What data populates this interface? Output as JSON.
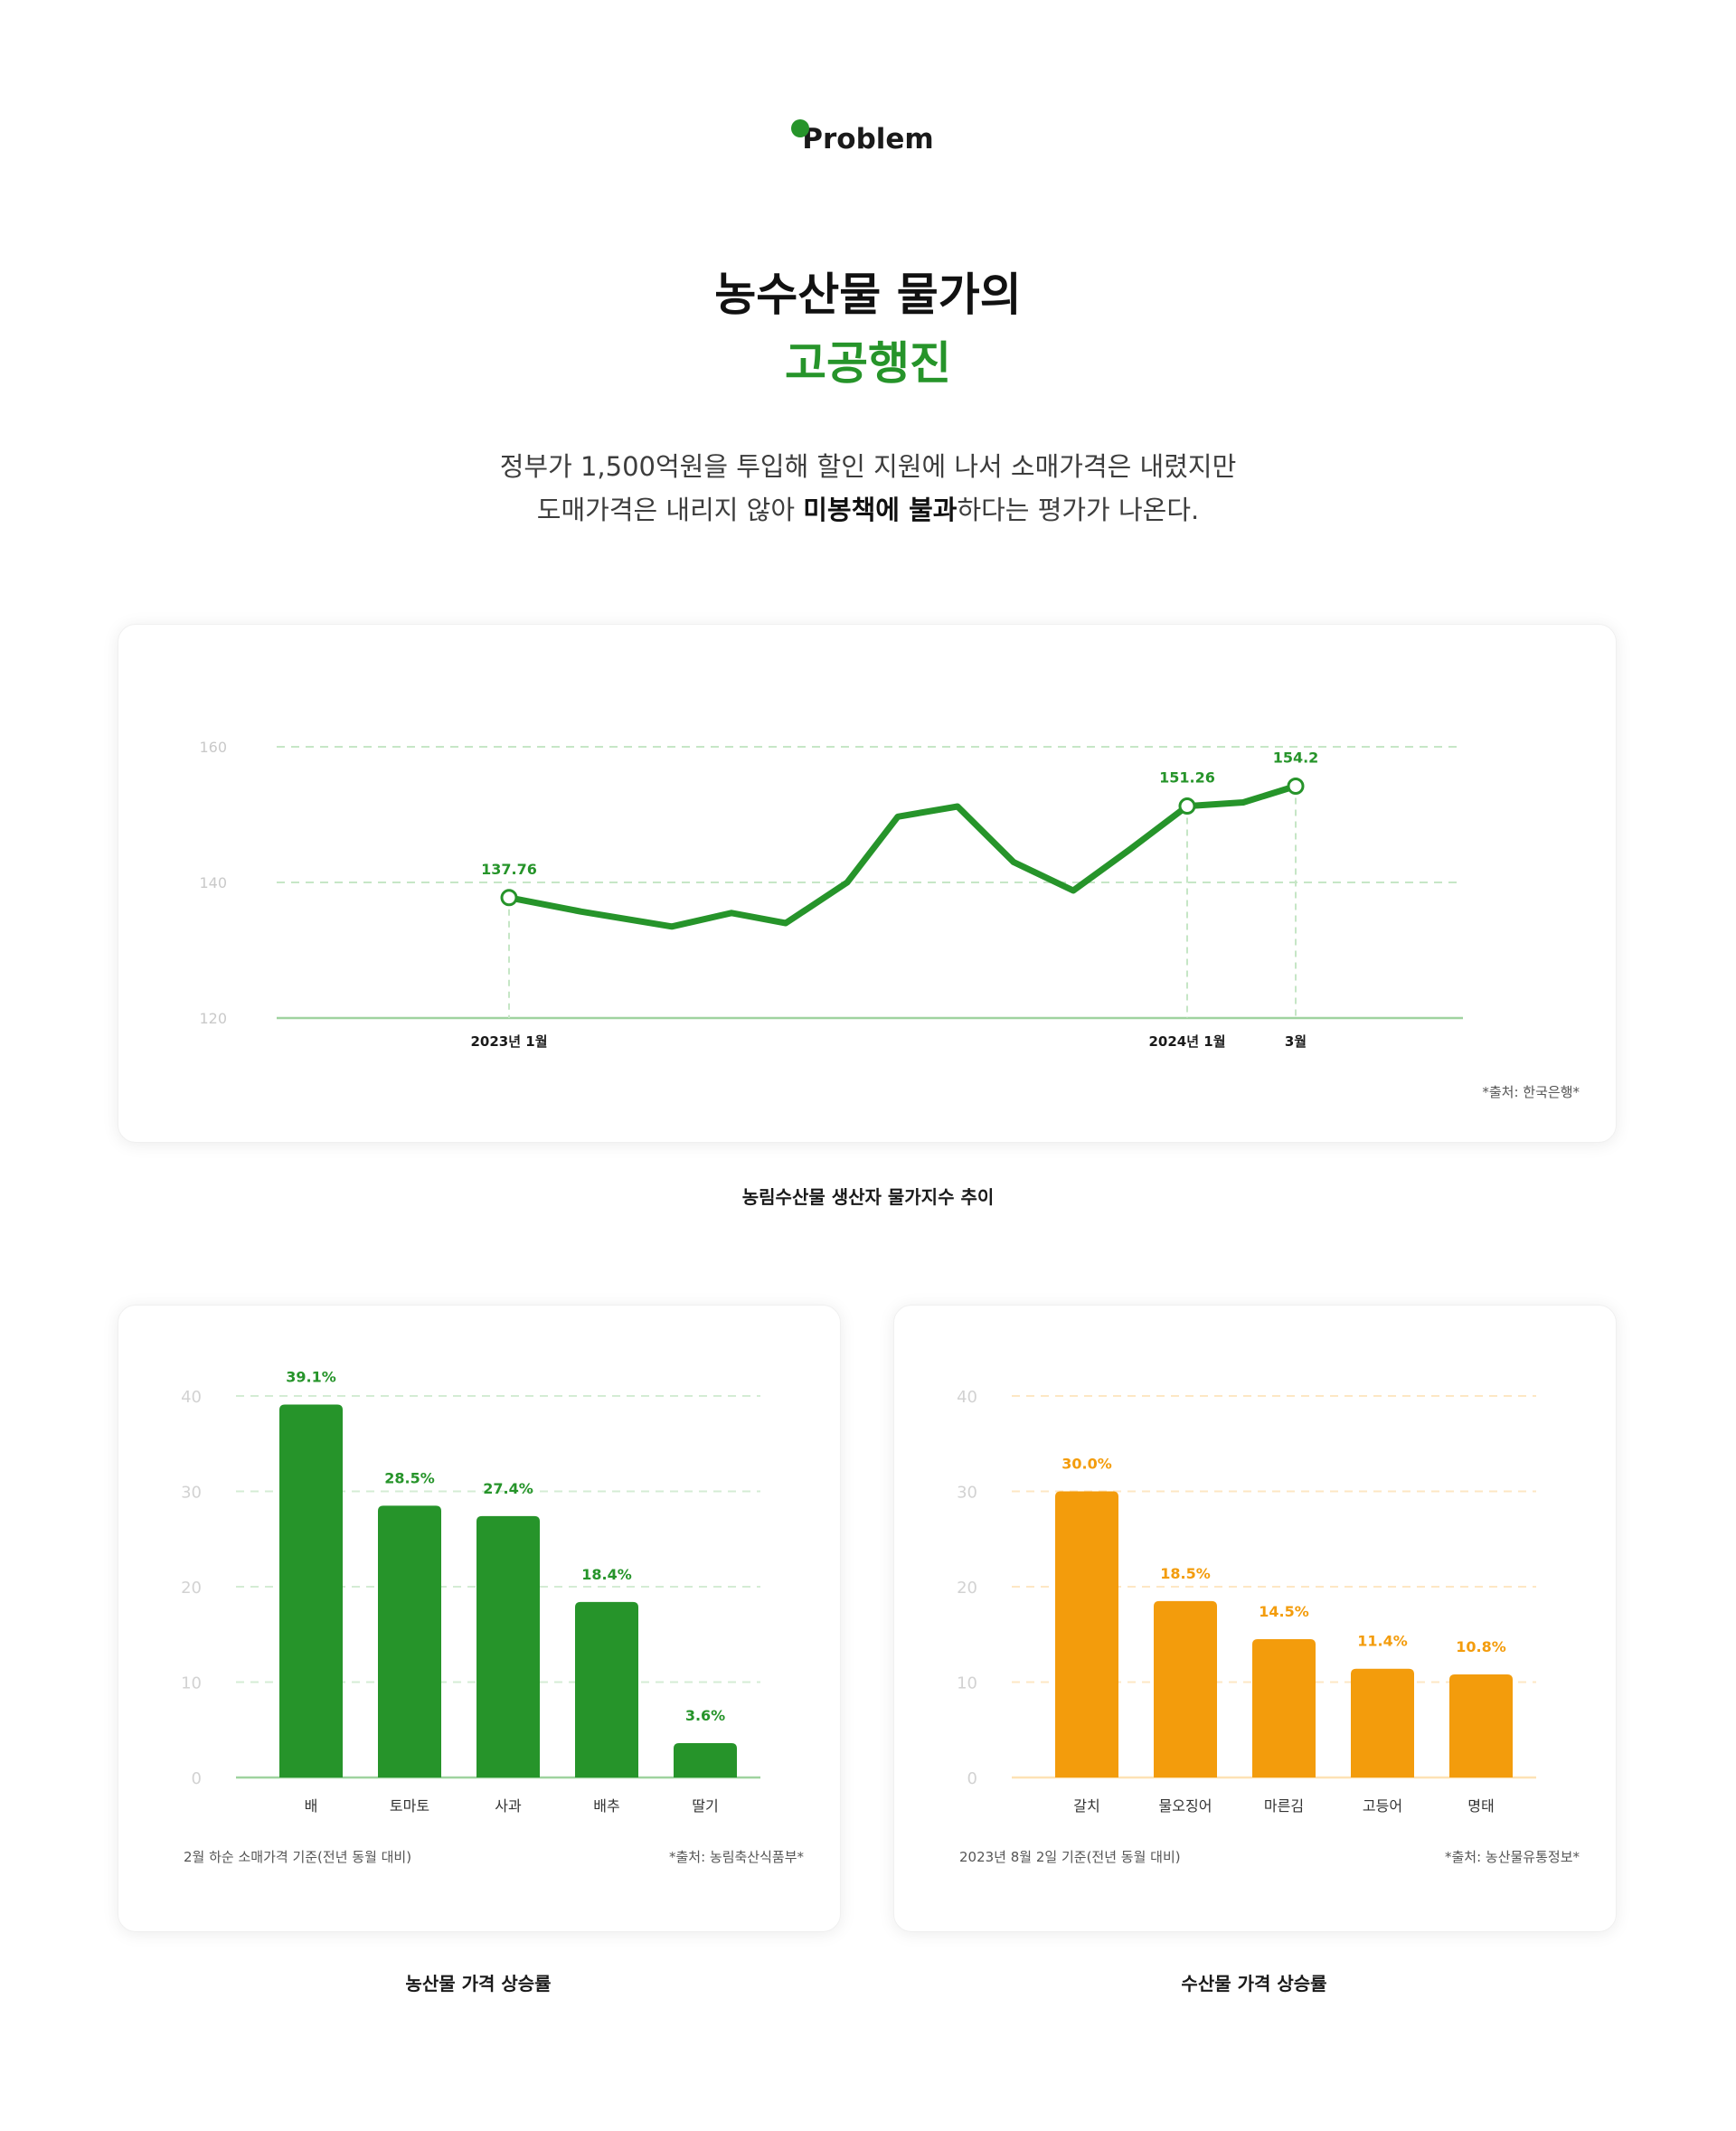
{
  "section": {
    "tag": "Problem"
  },
  "headline": {
    "line1": "농수산물 물가의",
    "line2": "고공행진"
  },
  "lead": {
    "line1": "정부가 1,500억원을 투입해 할인 지원에 나서 소매가격은 내렸지만",
    "line2_pre": "도매가격은 내리지 않아 ",
    "line2_bold": "미봉책에 불과",
    "line2_post": "하다는 평가가 나온다."
  },
  "colors": {
    "green": "#26942a",
    "orange": "#f39c0c",
    "grid_green": "#bfe3c0",
    "grid_orange": "#fde2b5"
  },
  "chart1": {
    "caption": "농림수산물 생산자 물가지수 추이",
    "source": "*출처: 한국은행*",
    "chart_data": {
      "type": "line",
      "ylim": [
        120,
        160
      ],
      "yticks": [
        120,
        140,
        160
      ],
      "x_labels": [
        "2023년 1월",
        "2024년 1월",
        "3월"
      ],
      "series": [
        {
          "values": [
            137.76,
            135.7,
            133.5,
            135.5,
            134,
            140,
            149.7,
            151.2,
            143,
            138.8,
            144.8,
            151.26,
            151.8,
            154.2
          ]
        }
      ],
      "labeled_points": [
        {
          "index": 0,
          "label": "137.76"
        },
        {
          "index": 11,
          "label": "151.26"
        },
        {
          "index": 13,
          "label": "154.2"
        }
      ]
    }
  },
  "chart2": {
    "caption": "농산물 가격 상승률",
    "note": "2월 하순 소매가격 기준(전년 동월 대비)",
    "source": "*출처: 농림축산식품부*",
    "chart_data": {
      "type": "bar",
      "categories": [
        "배",
        "토마토",
        "사과",
        "배추",
        "딸기"
      ],
      "values": [
        39.1,
        28.5,
        27.4,
        18.4,
        3.6
      ],
      "value_labels": [
        "39.1%",
        "28.5%",
        "27.4%",
        "18.4%",
        "3.6%"
      ],
      "ylim": [
        0,
        40
      ],
      "yticks": [
        0,
        10,
        20,
        30,
        40
      ]
    }
  },
  "chart3": {
    "caption": "수산물 가격 상승률",
    "note": "2023년 8월 2일 기준(전년 동월 대비)",
    "source": "*출처: 농산물유통정보*",
    "chart_data": {
      "type": "bar",
      "categories": [
        "갈치",
        "물오징어",
        "마른김",
        "고등어",
        "명태"
      ],
      "values": [
        30.0,
        18.5,
        14.5,
        11.4,
        10.8
      ],
      "value_labels": [
        "30.0%",
        "18.5%",
        "14.5%",
        "11.4%",
        "10.8%"
      ],
      "ylim": [
        0,
        40
      ],
      "yticks": [
        0,
        10,
        20,
        30,
        40
      ]
    }
  }
}
